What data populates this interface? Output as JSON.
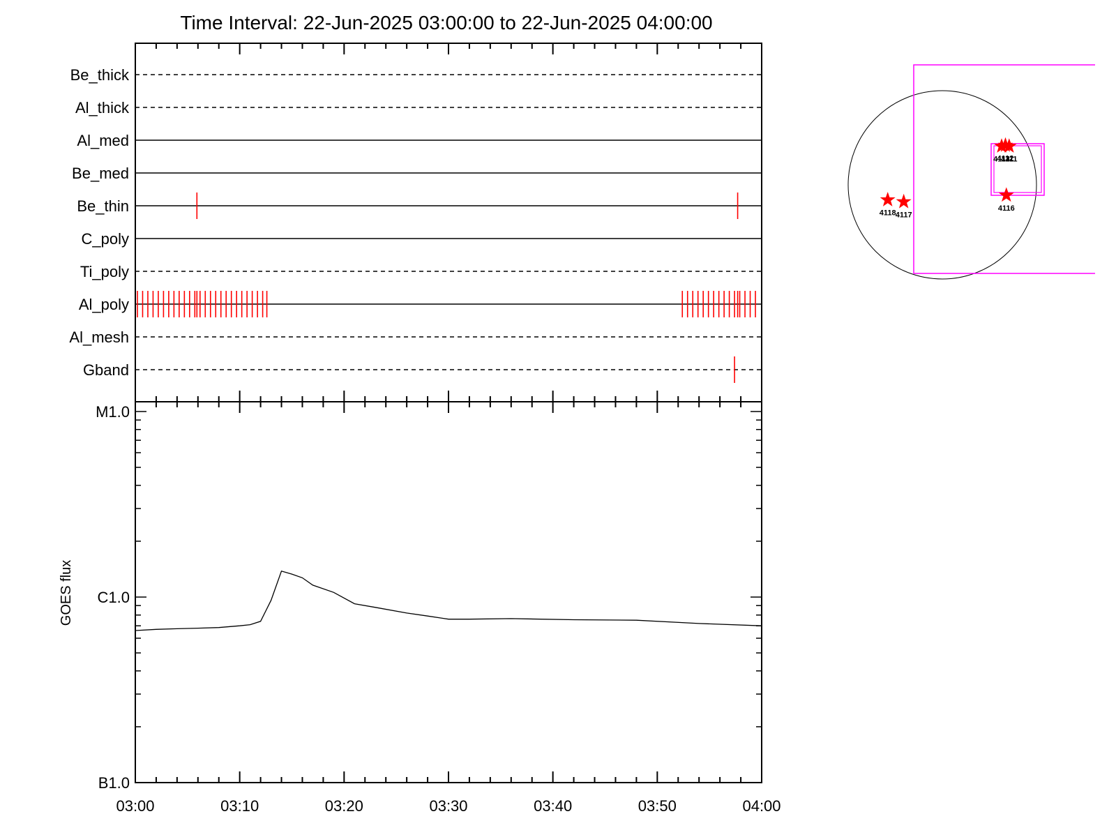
{
  "title": "Time Interval: 22-Jun-2025 03:00:00 to 22-Jun-2025 04:00:00",
  "colors": {
    "event": "#ff0000",
    "fov": "#ff00ff",
    "axis": "#000000"
  },
  "chart_data": [
    {
      "type": "line",
      "name": "attenuator-channel-timeline",
      "x_tick_labels": [
        "03:00",
        "03:10",
        "03:20",
        "03:30",
        "03:40",
        "03:50",
        "04:00"
      ],
      "xlim_minutes": [
        0,
        60
      ],
      "channels": [
        {
          "label": "Be_thick",
          "style": "dashed",
          "events_min": []
        },
        {
          "label": "Al_thick",
          "style": "dashed",
          "events_min": []
        },
        {
          "label": "Al_med",
          "style": "solid",
          "events_min": []
        },
        {
          "label": "Be_med",
          "style": "solid",
          "events_min": []
        },
        {
          "label": "Be_thin",
          "style": "solid",
          "events_min": [
            5.9,
            57.7
          ]
        },
        {
          "label": "C_poly",
          "style": "solid",
          "events_min": []
        },
        {
          "label": "Ti_poly",
          "style": "dashed",
          "events_min": []
        },
        {
          "label": "Al_poly",
          "style": "solid",
          "events_min": [
            0.2,
            0.7,
            1.2,
            1.7,
            2.2,
            2.7,
            3.2,
            3.7,
            4.2,
            4.7,
            5.2,
            5.7,
            5.9,
            6.2,
            6.7,
            7.2,
            7.7,
            8.2,
            8.7,
            9.2,
            9.7,
            10.2,
            10.7,
            11.2,
            11.7,
            12.2,
            12.6,
            52.4,
            52.9,
            53.4,
            53.9,
            54.4,
            54.9,
            55.4,
            55.9,
            56.4,
            56.9,
            57.4,
            57.7,
            57.9,
            58.4,
            58.9,
            59.4
          ]
        },
        {
          "label": "Al_mesh",
          "style": "dashed",
          "events_min": []
        },
        {
          "label": "Gband",
          "style": "dashed",
          "events_min": [
            57.4
          ]
        }
      ]
    },
    {
      "type": "line",
      "name": "goes-flux",
      "ylabel": "GOES flux",
      "yscale": "log",
      "ylim": [
        1e-07,
        1e-05
      ],
      "y_tick_labels": [
        "B1.0",
        "C1.0",
        "M1.0"
      ],
      "x_tick_labels": [
        "03:00",
        "03:10",
        "03:20",
        "03:30",
        "03:40",
        "03:50",
        "04:00"
      ],
      "xlim_minutes": [
        0,
        60
      ],
      "series": [
        {
          "x_min": [
            0,
            2,
            4,
            6,
            8,
            10,
            11,
            12,
            13,
            14,
            15,
            16,
            17,
            19,
            21,
            23,
            26,
            28,
            30,
            32,
            36,
            42,
            48,
            54,
            60
          ],
          "y": [
            6.6e-07,
            6.7e-07,
            6.75e-07,
            6.8e-07,
            6.85e-07,
            7e-07,
            7.1e-07,
            7.4e-07,
            9.6e-07,
            1.38e-06,
            1.33e-06,
            1.27e-06,
            1.16e-06,
            1.06e-06,
            9.2e-07,
            8.8e-07,
            8.2e-07,
            7.9e-07,
            7.6e-07,
            7.6e-07,
            7.65e-07,
            7.55e-07,
            7.5e-07,
            7.2e-07,
            7e-07
          ]
        }
      ]
    },
    {
      "type": "scatter",
      "name": "solar-disk-map",
      "points": [
        {
          "label": "4114",
          "x": 0.63,
          "y": 0.41
        },
        {
          "label": "4111",
          "x": 0.71,
          "y": 0.41
        },
        {
          "label": "4112",
          "x": 0.67,
          "y": 0.42
        },
        {
          "label": "4116",
          "x": 0.68,
          "y": -0.11
        },
        {
          "label": "4118",
          "x": -0.58,
          "y": -0.16
        },
        {
          "label": "4117",
          "x": -0.41,
          "y": -0.18
        }
      ]
    }
  ]
}
